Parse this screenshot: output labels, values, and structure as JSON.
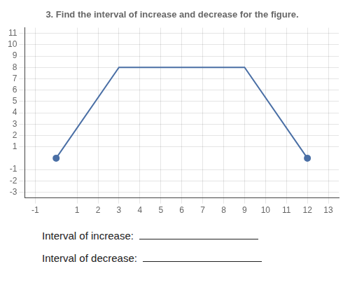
{
  "chart_data": {
    "type": "line",
    "title": "3. Find the interval of increase and decrease for the figure.",
    "series": [
      {
        "type": "line",
        "x": [
          0,
          3,
          9,
          12
        ],
        "values": [
          0,
          8,
          8,
          0
        ],
        "color": "#4a6fa5"
      },
      {
        "type": "scatter",
        "x": [
          0,
          12
        ],
        "values": [
          0,
          0
        ],
        "color": "#4a6fa5",
        "marker": "circle"
      }
    ],
    "xlim": [
      -1.5,
      13.5
    ],
    "ylim": [
      -3.5,
      11.5
    ],
    "xticks": [
      -1,
      1,
      2,
      3,
      4,
      5,
      6,
      7,
      8,
      9,
      10,
      11,
      12,
      13
    ],
    "yticks": [
      -3,
      -2,
      -1,
      1,
      2,
      3,
      4,
      5,
      6,
      7,
      8,
      9,
      10,
      11
    ],
    "grid": true,
    "annotations": [
      "Interval of increase:",
      "Interval of decrease:"
    ]
  }
}
